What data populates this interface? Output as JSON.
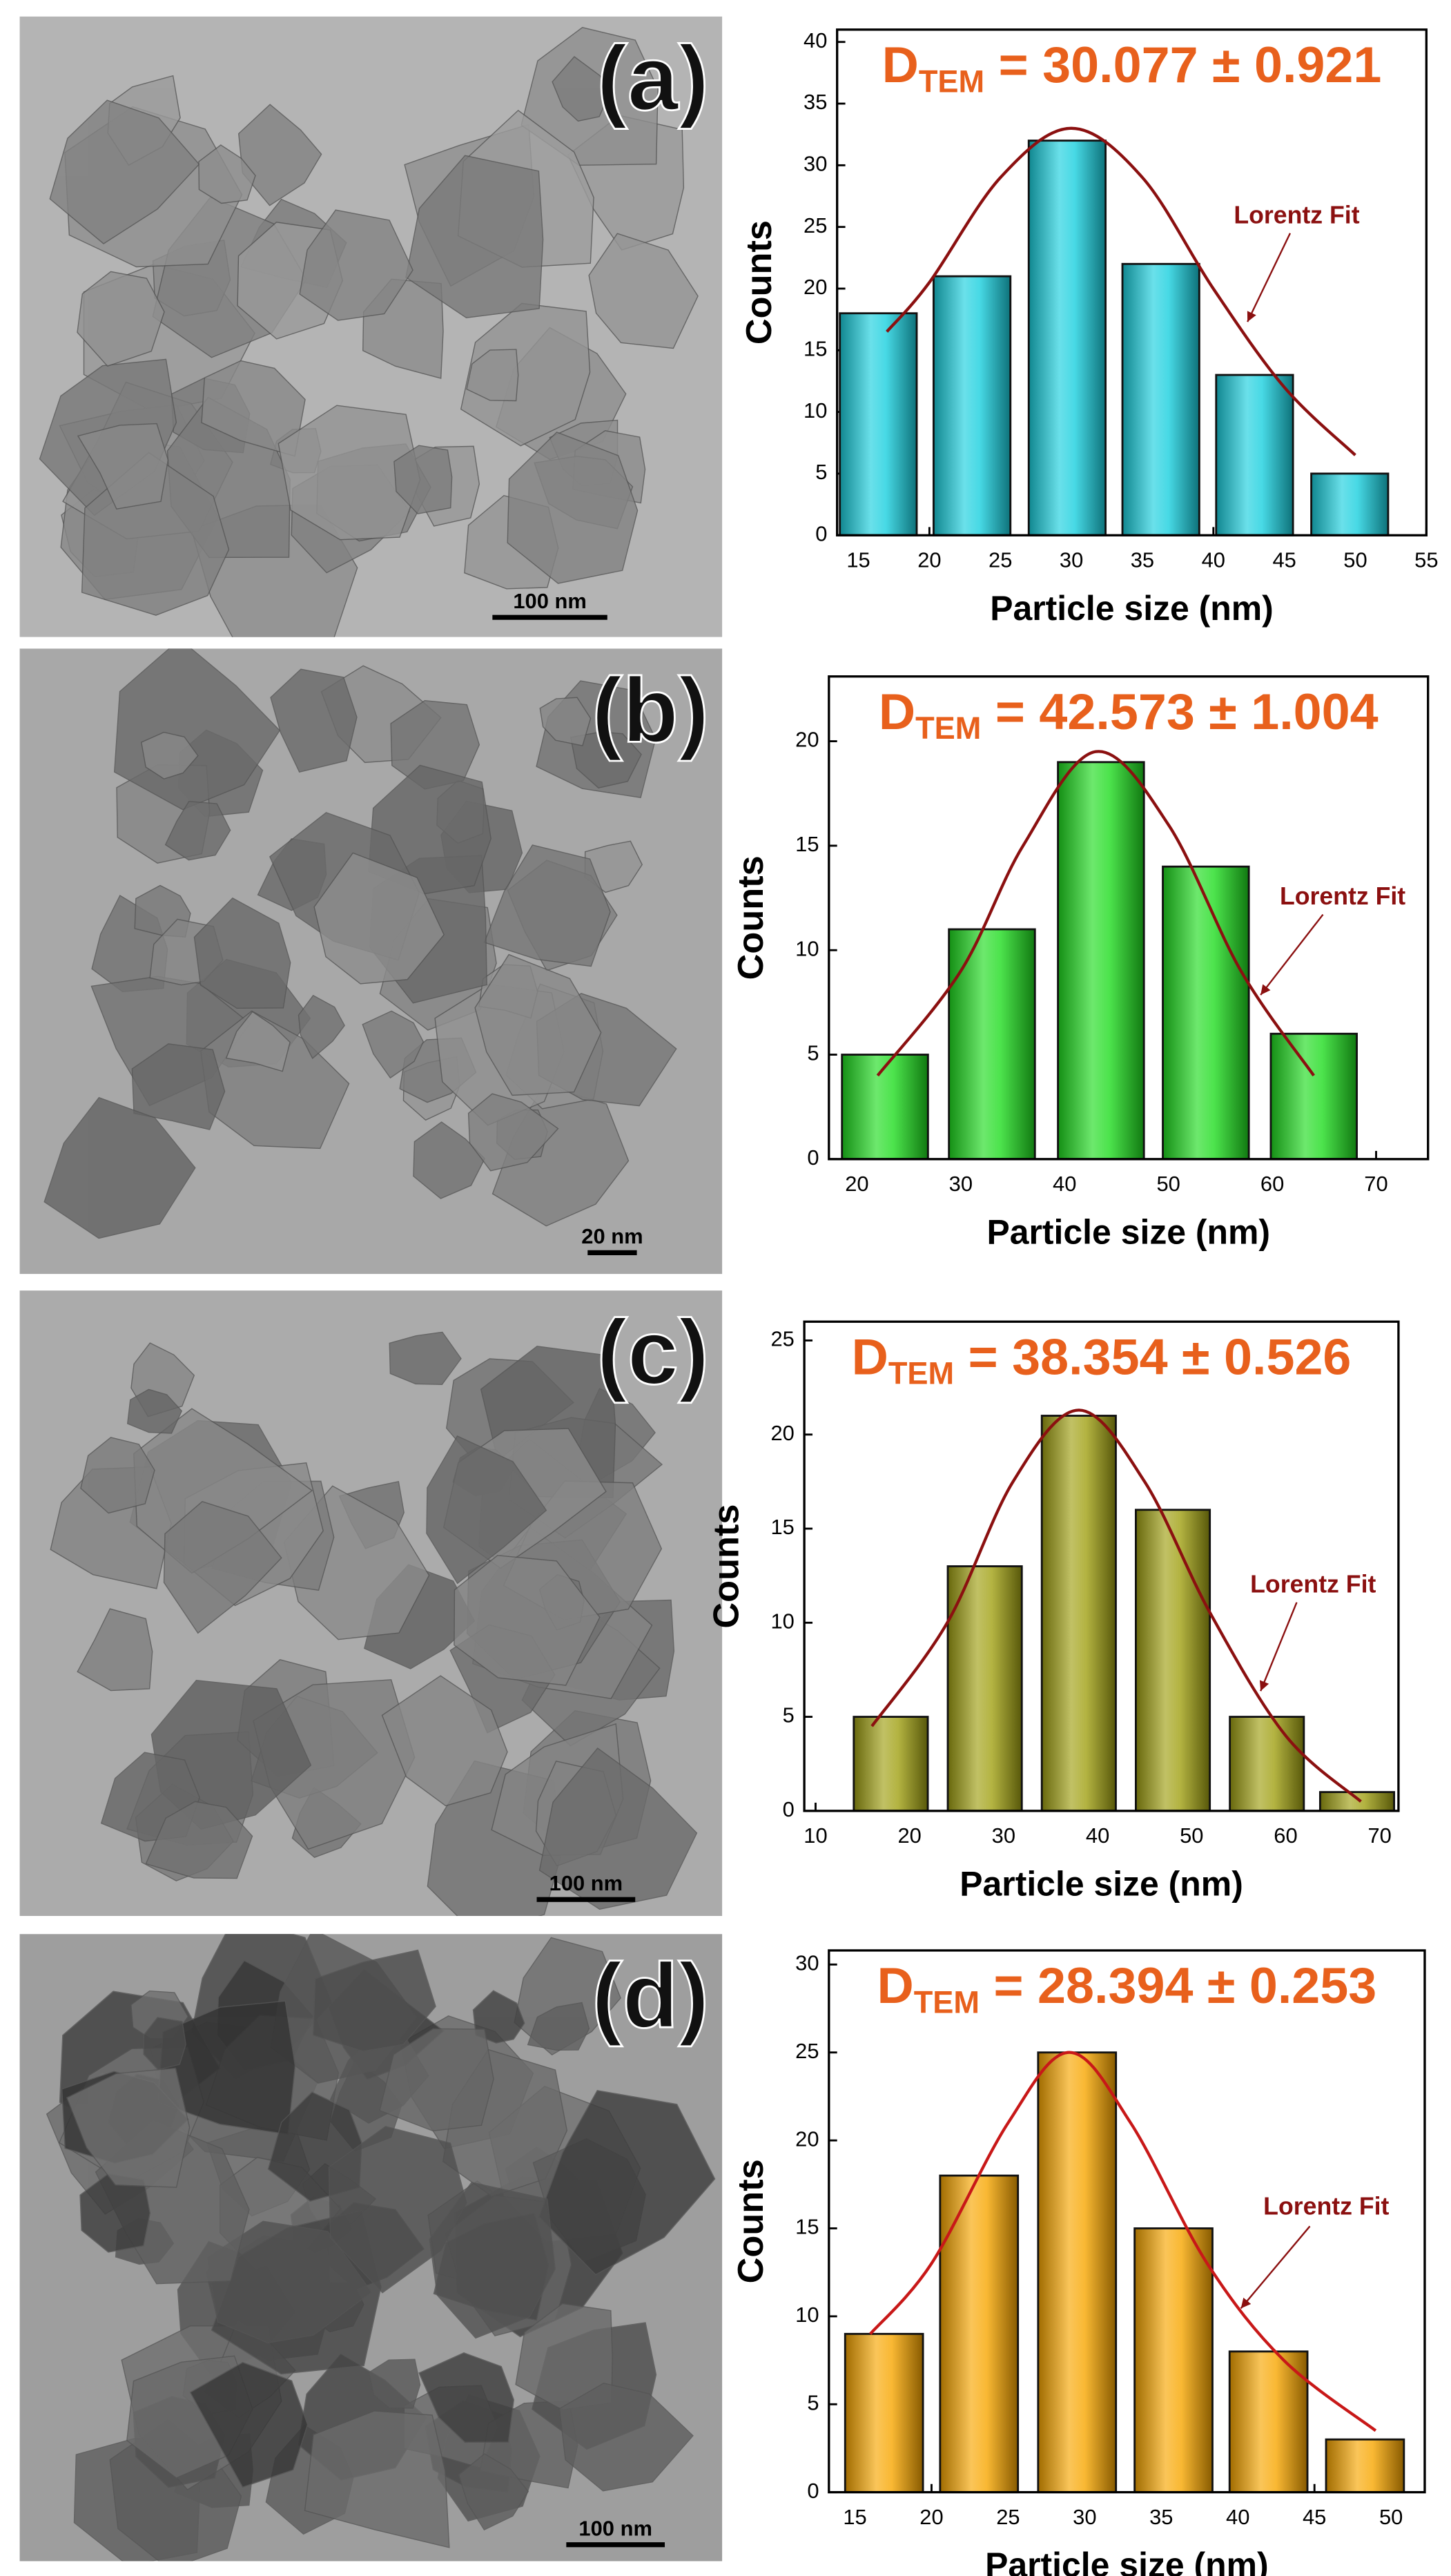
{
  "chart_data": [
    {
      "type": "bar",
      "title": [
        "D",
        "TEM",
        " = 30.077 ± 0.921"
      ],
      "xlabel": "Particle size (nm)",
      "ylabel": "Counts",
      "x": [
        16.4,
        23,
        29.7,
        36.3,
        42.9,
        49.6
      ],
      "values": [
        18,
        21,
        32,
        22,
        13,
        5
      ],
      "color": "#19d0de",
      "xlim": [
        13.5,
        55
      ],
      "ylim": [
        0,
        41
      ],
      "xticks": [
        15,
        20,
        25,
        30,
        35,
        40,
        45,
        50,
        55
      ],
      "yticks": [
        0,
        5,
        10,
        15,
        20,
        25,
        30,
        35,
        40
      ],
      "fit": {
        "x": [
          17,
          20,
          25,
          30,
          35,
          40,
          45,
          50
        ],
        "values": [
          16.5,
          20.5,
          29,
          33,
          29,
          20,
          12,
          6.5
        ],
        "color": "#8b1010"
      },
      "annotation": "Lorentz Fit"
    },
    {
      "type": "bar",
      "title": [
        "D",
        "TEM",
        " = 42.573 ± 1.004"
      ],
      "xlabel": "Particle size (nm)",
      "ylabel": "Counts",
      "x": [
        22.7,
        33,
        43.5,
        53.6,
        64
      ],
      "values": [
        5,
        11,
        19,
        14,
        6
      ],
      "color": "#1fdc1f",
      "xlim": [
        17.3,
        75
      ],
      "ylim": [
        0,
        23.1
      ],
      "xticks": [
        20,
        30,
        40,
        50,
        60,
        70
      ],
      "yticks": [
        0,
        5,
        10,
        15,
        20
      ],
      "fit": {
        "x": [
          22,
          30,
          36,
          43,
          50,
          57,
          64
        ],
        "values": [
          4,
          9,
          15,
          19.5,
          16,
          9,
          4
        ],
        "color": "#8b1010"
      },
      "annotation": "Lorentz Fit"
    },
    {
      "type": "bar",
      "title": [
        "D",
        "TEM",
        " = 38.354 ± 0.526"
      ],
      "xlabel": "Particle size (nm)",
      "ylabel": "Counts",
      "x": [
        18,
        28,
        38,
        48,
        58,
        67.6
      ],
      "values": [
        5,
        13,
        21,
        16,
        5,
        1
      ],
      "color": "#a0a012",
      "xlim": [
        8.8,
        72
      ],
      "ylim": [
        0,
        26
      ],
      "xticks": [
        10,
        20,
        30,
        40,
        50,
        60,
        70
      ],
      "yticks": [
        0,
        5,
        10,
        15,
        20,
        25
      ],
      "fit": {
        "x": [
          16,
          24,
          31,
          38,
          45,
          52,
          60,
          68
        ],
        "values": [
          4.5,
          10,
          17.5,
          21.3,
          17.5,
          10.5,
          4,
          0.5
        ],
        "color": "#8b1010"
      },
      "annotation": "Lorentz Fit"
    },
    {
      "type": "bar",
      "title": [
        "D",
        "TEM",
        " = 28.394 ± 0.253"
      ],
      "xlabel": "Particle size (nm)",
      "ylabel": "Counts",
      "x": [
        16.9,
        23.1,
        29.5,
        35.8,
        42,
        48.3
      ],
      "values": [
        9,
        18,
        25,
        15,
        8,
        3
      ],
      "color": "#f7a600",
      "xlim": [
        13.3,
        52.2
      ],
      "ylim": [
        0,
        30.8
      ],
      "xticks": [
        15,
        20,
        25,
        30,
        35,
        40,
        45,
        50
      ],
      "yticks": [
        0,
        5,
        10,
        15,
        20,
        25,
        30
      ],
      "fit": {
        "x": [
          16,
          20,
          25,
          29,
          33,
          38,
          43,
          49
        ],
        "values": [
          9,
          13,
          21,
          25,
          21,
          13,
          7.5,
          3.5
        ],
        "color": "#c81818"
      },
      "annotation": "Lorentz Fit"
    }
  ],
  "images": [
    {
      "label": "(a)",
      "scale_bar": "100 nm"
    },
    {
      "label": "(b)",
      "scale_bar": "20 nm"
    },
    {
      "label": "(c)",
      "scale_bar": "100 nm"
    },
    {
      "label": "(d)",
      "scale_bar": "100 nm"
    }
  ]
}
